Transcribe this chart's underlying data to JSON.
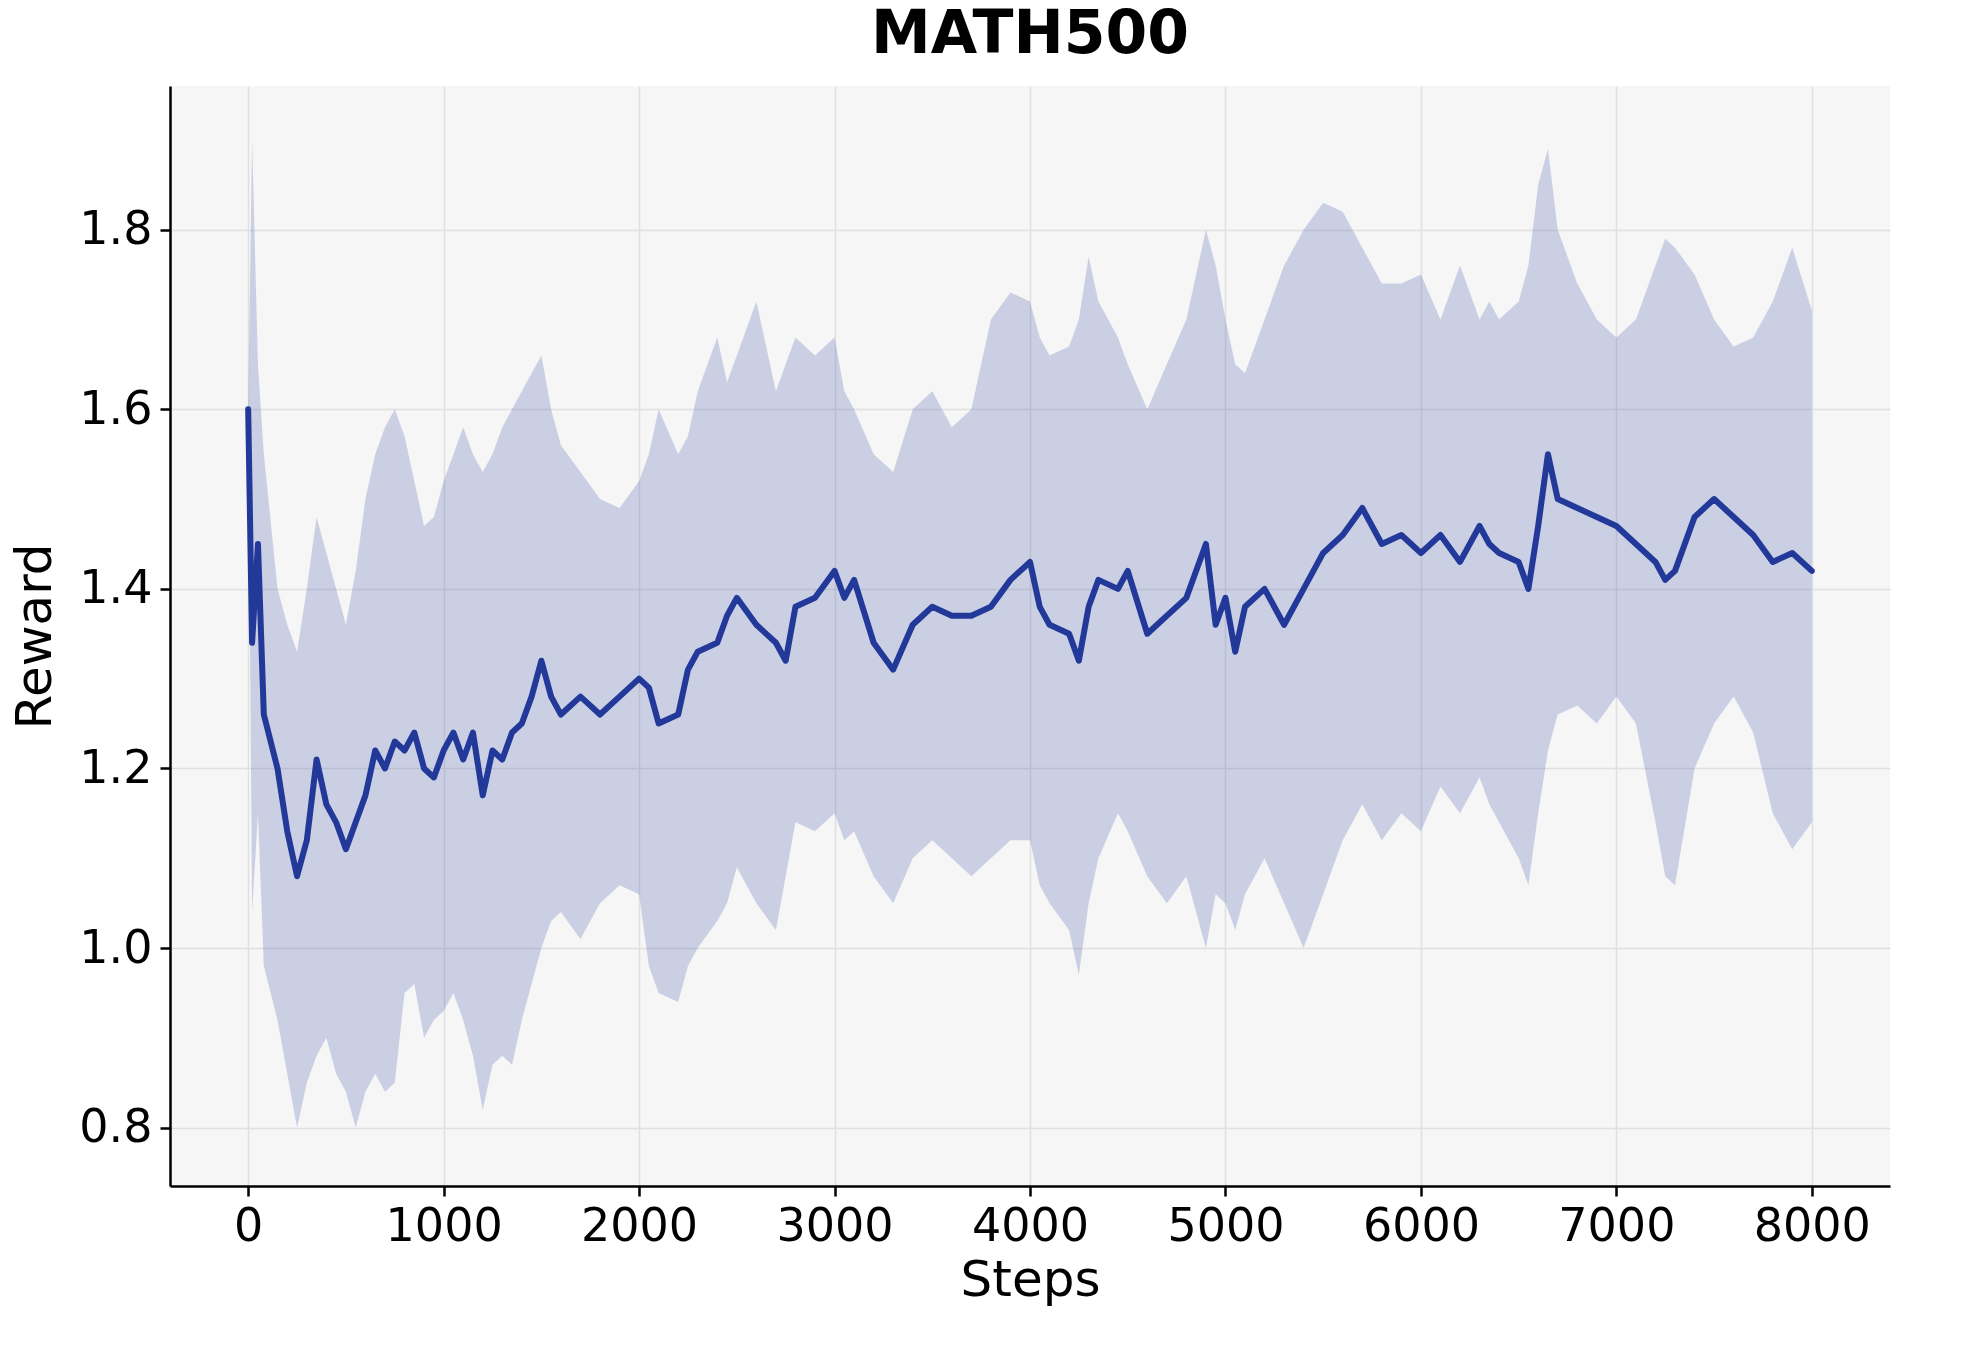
{
  "chart_data": {
    "type": "line",
    "title": "MATH500",
    "xlabel": "Steps",
    "ylabel": "Reward",
    "xlim": [
      -400,
      8400
    ],
    "ylim": [
      0.735,
      1.96
    ],
    "xticks": [
      0,
      1000,
      2000,
      3000,
      4000,
      5000,
      6000,
      7000,
      8000
    ],
    "yticks": [
      0.8,
      {
        "value": 1,
        "label": "1.0"
      },
      1.2,
      1.4,
      1.6,
      1.8
    ],
    "grid": true,
    "series": [
      {
        "color": "#22399a",
        "x": [
          0,
          20,
          50,
          80,
          150,
          200,
          250,
          300,
          350,
          400,
          450,
          500,
          550,
          600,
          650,
          700,
          750,
          800,
          850,
          900,
          950,
          1000,
          1050,
          1100,
          1150,
          1200,
          1250,
          1300,
          1350,
          1400,
          1450,
          1500,
          1550,
          1600,
          1700,
          1800,
          1900,
          2000,
          2050,
          2100,
          2200,
          2250,
          2300,
          2400,
          2450,
          2500,
          2600,
          2700,
          2750,
          2800,
          2900,
          3000,
          3050,
          3100,
          3200,
          3300,
          3400,
          3500,
          3600,
          3700,
          3800,
          3900,
          4000,
          4050,
          4100,
          4200,
          4250,
          4300,
          4350,
          4450,
          4500,
          4600,
          4700,
          4800,
          4900,
          4950,
          5000,
          5050,
          5100,
          5200,
          5300,
          5400,
          5500,
          5600,
          5700,
          5800,
          5900,
          6000,
          6100,
          6200,
          6300,
          6350,
          6400,
          6500,
          6550,
          6600,
          6650,
          6700,
          6800,
          6900,
          7000,
          7100,
          7200,
          7250,
          7300,
          7400,
          7500,
          7600,
          7700,
          7800,
          7900,
          8000
        ],
        "values": [
          1.6,
          1.34,
          1.45,
          1.26,
          1.2,
          1.13,
          1.08,
          1.12,
          1.21,
          1.16,
          1.14,
          1.11,
          1.14,
          1.17,
          1.22,
          1.2,
          1.23,
          1.22,
          1.24,
          1.2,
          1.19,
          1.22,
          1.24,
          1.21,
          1.24,
          1.17,
          1.22,
          1.21,
          1.24,
          1.25,
          1.28,
          1.32,
          1.28,
          1.26,
          1.28,
          1.26,
          1.28,
          1.3,
          1.29,
          1.25,
          1.26,
          1.31,
          1.33,
          1.34,
          1.37,
          1.39,
          1.36,
          1.34,
          1.32,
          1.38,
          1.39,
          1.42,
          1.39,
          1.41,
          1.34,
          1.31,
          1.36,
          1.38,
          1.37,
          1.37,
          1.38,
          1.41,
          1.43,
          1.38,
          1.36,
          1.35,
          1.32,
          1.38,
          1.41,
          1.4,
          1.42,
          1.35,
          1.37,
          1.39,
          1.45,
          1.36,
          1.39,
          1.33,
          1.38,
          1.4,
          1.36,
          1.4,
          1.44,
          1.46,
          1.49,
          1.45,
          1.46,
          1.44,
          1.46,
          1.43,
          1.47,
          1.45,
          1.44,
          1.43,
          1.4,
          1.47,
          1.55,
          1.5,
          1.49,
          1.48,
          1.47,
          1.45,
          1.43,
          1.41,
          1.42,
          1.48,
          1.5,
          1.48,
          1.46,
          1.43,
          1.44,
          1.42
        ],
        "upper": [
          1.6,
          1.9,
          1.65,
          1.55,
          1.4,
          1.36,
          1.33,
          1.4,
          1.48,
          1.44,
          1.4,
          1.36,
          1.42,
          1.5,
          1.55,
          1.58,
          1.6,
          1.57,
          1.52,
          1.47,
          1.48,
          1.52,
          1.55,
          1.58,
          1.55,
          1.53,
          1.55,
          1.58,
          1.6,
          1.62,
          1.64,
          1.66,
          1.6,
          1.56,
          1.53,
          1.5,
          1.49,
          1.52,
          1.55,
          1.6,
          1.55,
          1.57,
          1.62,
          1.68,
          1.63,
          1.66,
          1.72,
          1.62,
          1.65,
          1.68,
          1.66,
          1.68,
          1.62,
          1.6,
          1.55,
          1.53,
          1.6,
          1.62,
          1.58,
          1.6,
          1.7,
          1.73,
          1.72,
          1.68,
          1.66,
          1.67,
          1.7,
          1.77,
          1.72,
          1.68,
          1.65,
          1.6,
          1.65,
          1.7,
          1.8,
          1.76,
          1.7,
          1.65,
          1.64,
          1.7,
          1.76,
          1.8,
          1.83,
          1.82,
          1.78,
          1.74,
          1.74,
          1.75,
          1.7,
          1.76,
          1.7,
          1.72,
          1.7,
          1.72,
          1.76,
          1.85,
          1.89,
          1.8,
          1.74,
          1.7,
          1.68,
          1.7,
          1.76,
          1.79,
          1.78,
          1.75,
          1.7,
          1.67,
          1.68,
          1.72,
          1.78,
          1.71
        ],
        "lower": [
          1.6,
          1.04,
          1.15,
          0.98,
          0.92,
          0.86,
          0.8,
          0.85,
          0.88,
          0.9,
          0.86,
          0.84,
          0.8,
          0.84,
          0.86,
          0.84,
          0.85,
          0.95,
          0.96,
          0.9,
          0.92,
          0.93,
          0.95,
          0.92,
          0.88,
          0.82,
          0.87,
          0.88,
          0.87,
          0.92,
          0.96,
          1.0,
          1.03,
          1.04,
          1.01,
          1.05,
          1.07,
          1.06,
          0.98,
          0.95,
          0.94,
          0.98,
          1.0,
          1.03,
          1.05,
          1.09,
          1.05,
          1.02,
          1.08,
          1.14,
          1.13,
          1.15,
          1.12,
          1.13,
          1.08,
          1.05,
          1.1,
          1.12,
          1.1,
          1.08,
          1.1,
          1.12,
          1.12,
          1.07,
          1.05,
          1.02,
          0.97,
          1.05,
          1.1,
          1.15,
          1.13,
          1.08,
          1.05,
          1.08,
          1.0,
          1.06,
          1.05,
          1.02,
          1.06,
          1.1,
          1.05,
          1.0,
          1.06,
          1.12,
          1.16,
          1.12,
          1.15,
          1.13,
          1.18,
          1.15,
          1.19,
          1.16,
          1.14,
          1.1,
          1.07,
          1.15,
          1.22,
          1.26,
          1.27,
          1.25,
          1.28,
          1.25,
          1.14,
          1.08,
          1.07,
          1.2,
          1.25,
          1.28,
          1.24,
          1.15,
          1.11,
          1.14
        ]
      }
    ]
  }
}
